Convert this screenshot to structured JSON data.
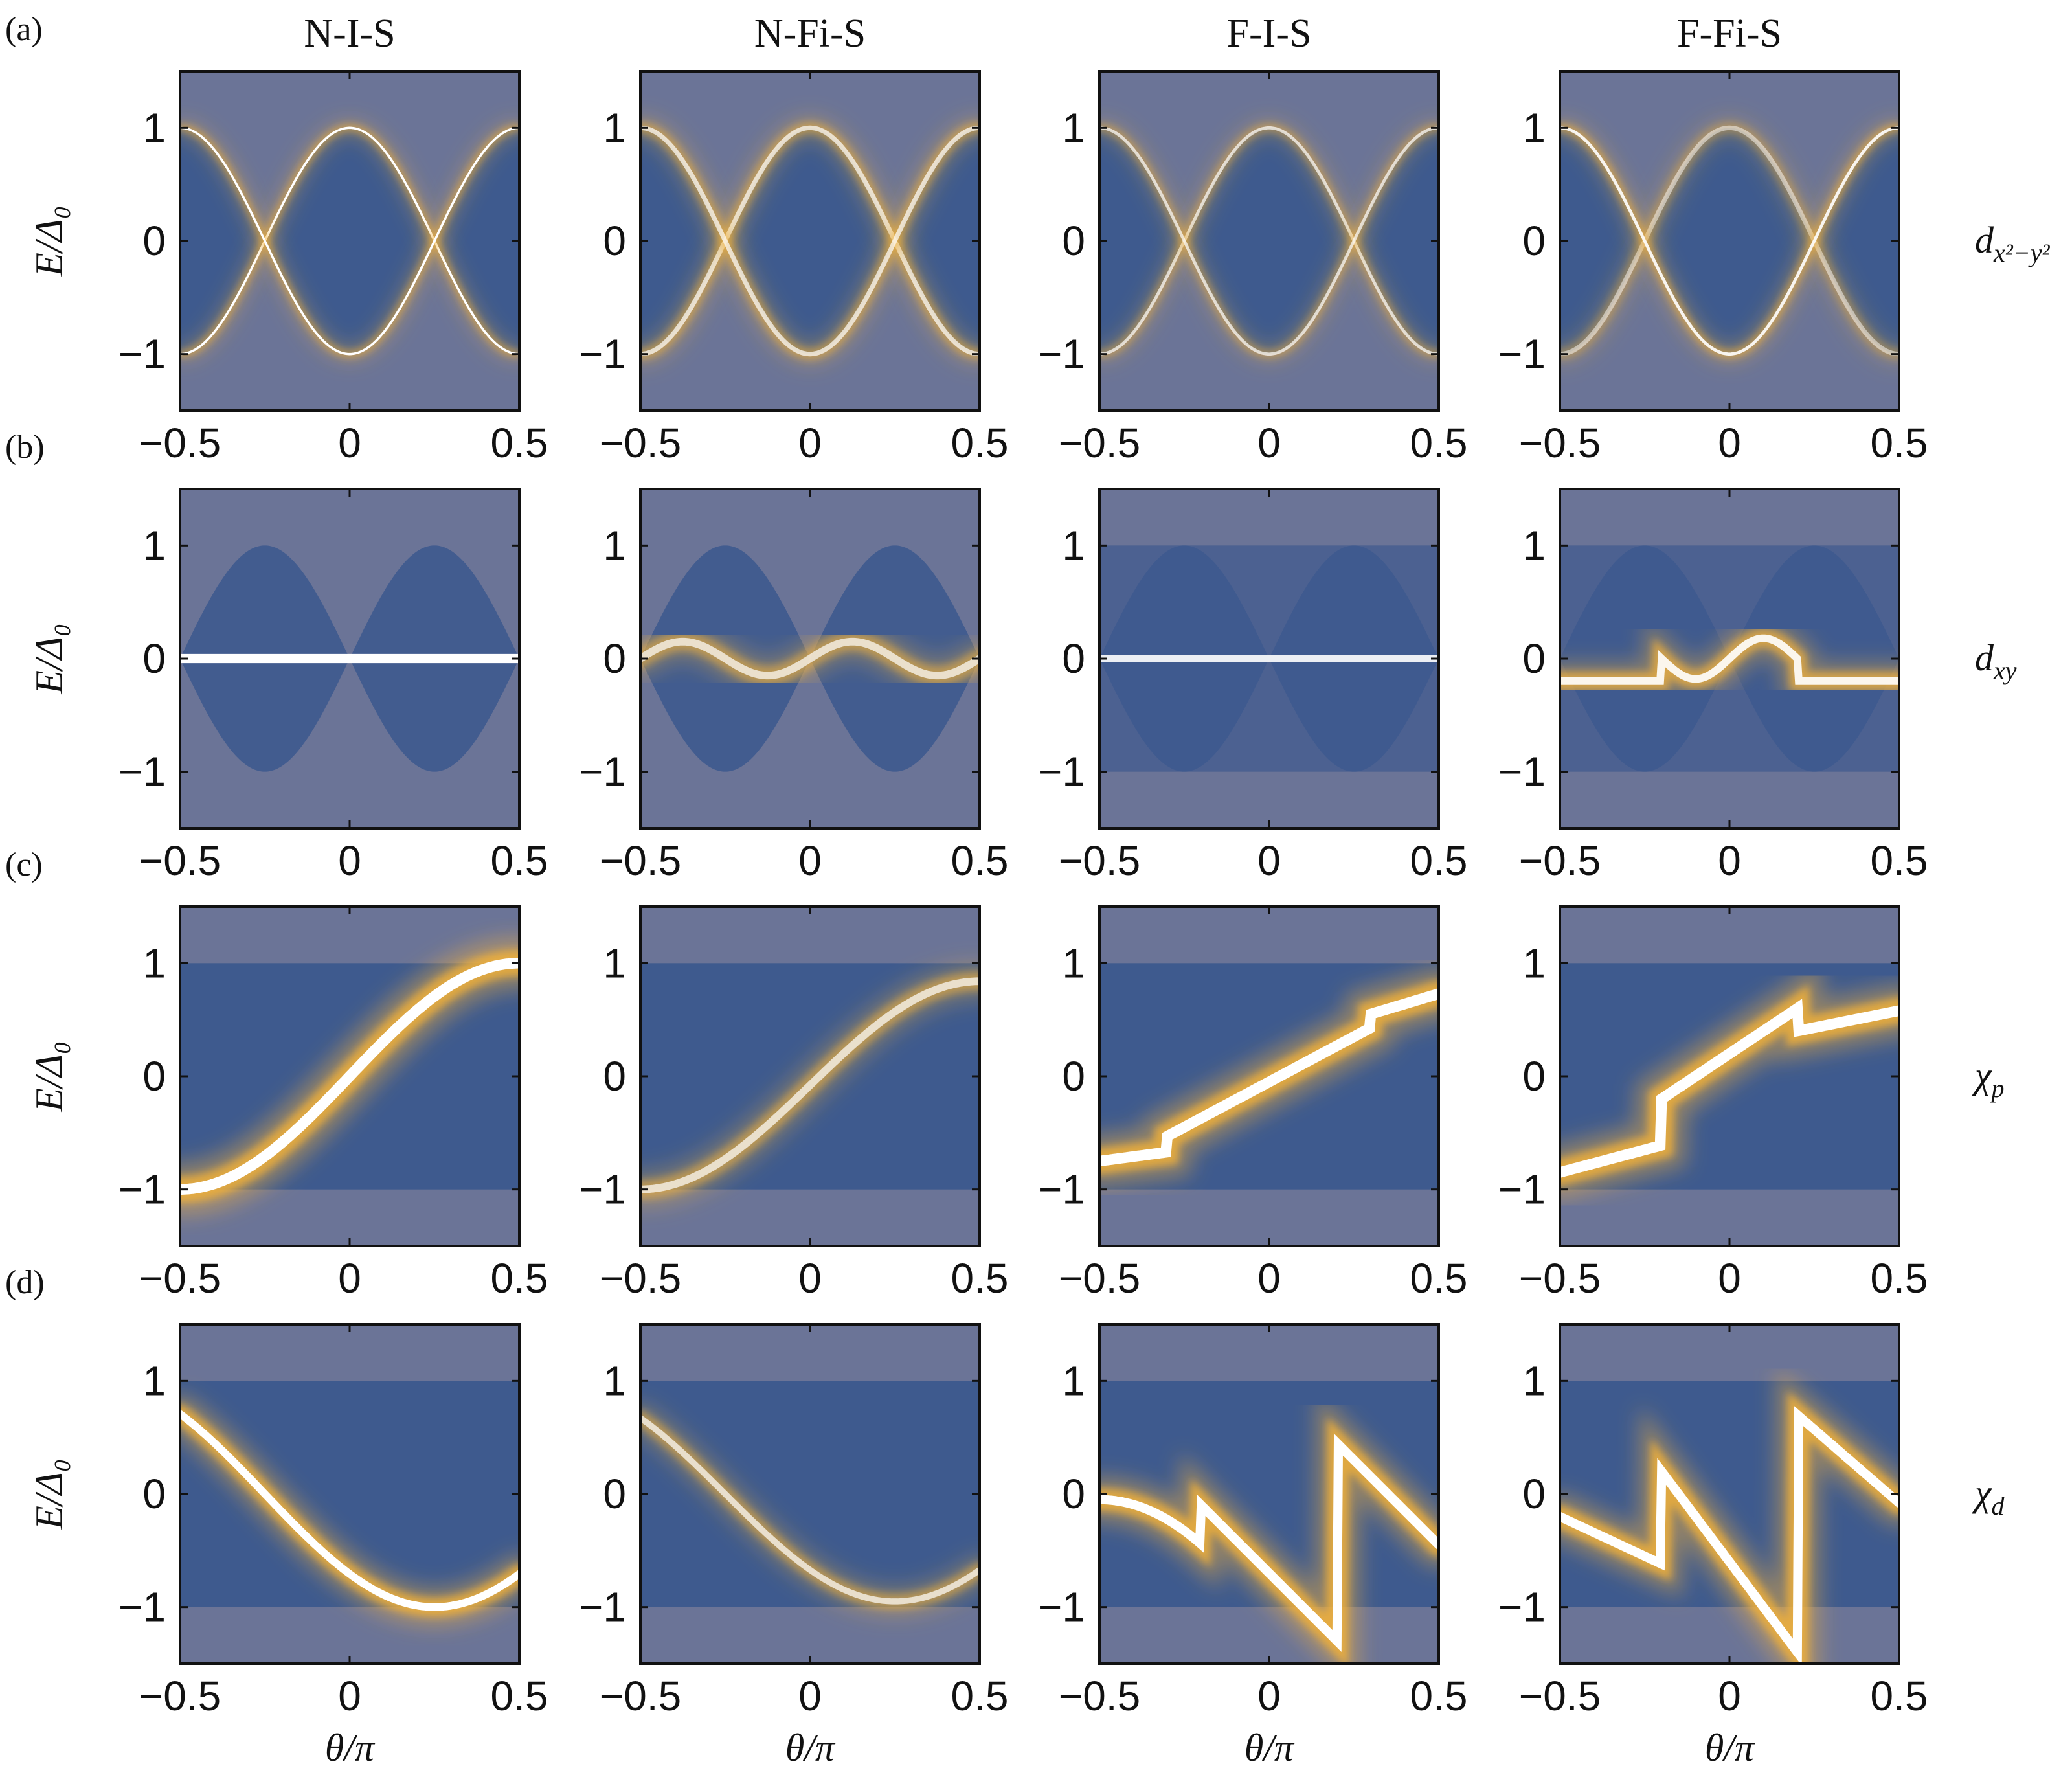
{
  "chart_data": {
    "type": "heatmap",
    "columns": [
      "N-I-S",
      "N-Fi-S",
      "F-I-S",
      "F-Fi-S"
    ],
    "rows": [
      {
        "label": "(a)",
        "symbol": "d",
        "subscript": "x²−y²",
        "state": "dx2y2"
      },
      {
        "label": "(b)",
        "symbol": "d",
        "subscript": "xy",
        "state": "dxy"
      },
      {
        "label": "(c)",
        "symbol": "χ",
        "subscript": "p",
        "state": "chip"
      },
      {
        "label": "(d)",
        "symbol": "χ",
        "subscript": "d",
        "state": "chid"
      }
    ],
    "ylabel": "E/Δ₀",
    "xlabel": "θ/π",
    "xlim": [
      -0.5,
      0.5
    ],
    "ylim": [
      -1.5,
      1.5
    ],
    "xticks": [
      "−0.5",
      "0",
      "0.5"
    ],
    "xtick_values": [
      -0.5,
      0,
      0.5
    ],
    "yticks": [
      "−1",
      "0",
      "1"
    ],
    "ytick_values": [
      -1,
      0,
      1
    ],
    "colors": {
      "background": "#3e5a8e",
      "bright": "#ffffff",
      "glow": "#f3b23a",
      "halo": "#6b7497"
    },
    "panels": [
      [
        {
          "bands": [
            {
              "f": "cos",
              "w": 0.015,
              "s": 1.0
            },
            {
              "f": "ncos",
              "w": 0.015,
              "s": 1.0
            }
          ]
        },
        {
          "bands": [
            {
              "f": "cos",
              "w": 0.03,
              "s": 0.7
            },
            {
              "f": "ncos",
              "w": 0.03,
              "s": 0.7
            }
          ]
        },
        {
          "bands": [
            {
              "f": "cos",
              "w": 0.02,
              "s": 0.7
            },
            {
              "f": "ncos",
              "w": 0.02,
              "s": 0.7
            }
          ]
        },
        {
          "bands": [
            {
              "f": "cos",
              "w": 0.03,
              "s": 0.5
            },
            {
              "f": "ncos",
              "w": 0.02,
              "s": 0.9
            }
          ]
        }
      ],
      [
        {
          "bands": [
            {
              "f": "zero",
              "w": 0.06,
              "s": 1.0
            }
          ]
        },
        {
          "bands": [
            {
              "f": "split",
              "w": 0.05,
              "s": 0.7
            }
          ]
        },
        {
          "bands": [
            {
              "f": "zero",
              "w": 0.05,
              "s": 0.9
            }
          ]
        },
        {
          "bands": [
            {
              "f": "step",
              "w": 0.05,
              "s": 0.9
            }
          ]
        }
      ],
      [
        {
          "bands": [
            {
              "f": "sinp",
              "w": 0.07,
              "s": 1.0
            }
          ]
        },
        {
          "bands": [
            {
              "f": "sinp2",
              "w": 0.05,
              "s": 0.7
            }
          ]
        },
        {
          "bands": [
            {
              "f": "fchip",
              "w": 0.07,
              "s": 1.0
            }
          ]
        },
        {
          "bands": [
            {
              "f": "fchip2",
              "w": 0.07,
              "s": 1.0
            }
          ]
        }
      ],
      [
        {
          "bands": [
            {
              "f": "chid",
              "w": 0.05,
              "s": 1.0
            }
          ]
        },
        {
          "bands": [
            {
              "f": "chid2",
              "w": 0.04,
              "s": 0.7
            }
          ]
        },
        {
          "bands": [
            {
              "f": "fchid",
              "w": 0.06,
              "s": 1.0
            }
          ]
        },
        {
          "bands": [
            {
              "f": "fchid2",
              "w": 0.06,
              "s": 1.0
            }
          ]
        }
      ]
    ]
  }
}
